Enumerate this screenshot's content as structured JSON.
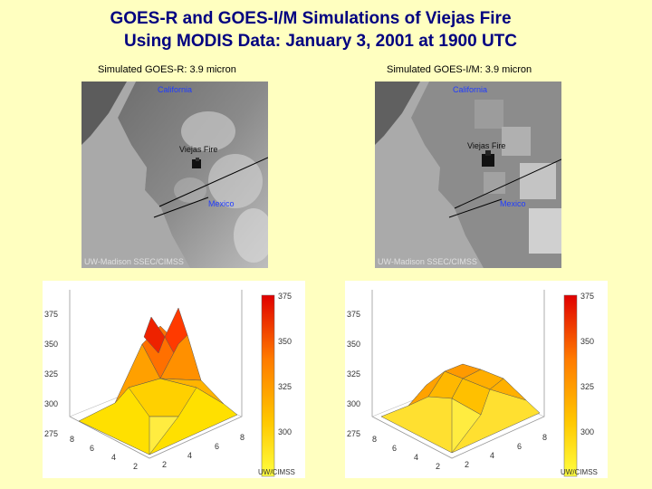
{
  "title_line1": "GOES-R and GOES-I/M Simulations of Viejas Fire",
  "title_line2": "Using MODIS Data:  January 3, 2001 at 1900 UTC",
  "left": {
    "caption": "Simulated GOES-R:  3.9 micron",
    "california": "California",
    "fire": "Viejas Fire",
    "mexico": "Mexico",
    "credit": "UW-Madison SSEC/CIMSS",
    "plot": {
      "y_ticks": [
        "375",
        "350",
        "325",
        "300",
        "275"
      ],
      "x_ticks_left": [
        "8",
        "6",
        "4",
        "2"
      ],
      "x_ticks_right": [
        "2",
        "4",
        "6",
        "8"
      ],
      "colorbar_ticks": [
        "375",
        "350",
        "325",
        "300"
      ],
      "credit": "UW/CIMSS"
    }
  },
  "right": {
    "caption": "Simulated GOES-I/M:  3.9 micron",
    "california": "California",
    "fire": "Viejas Fire",
    "mexico": "Mexico",
    "credit": "UW-Madison SSEC/CIMSS",
    "plot": {
      "y_ticks": [
        "375",
        "350",
        "325",
        "300",
        "275"
      ],
      "x_ticks_left": [
        "8",
        "6",
        "4",
        "2"
      ],
      "x_ticks_right": [
        "2",
        "4",
        "6",
        "8"
      ],
      "colorbar_ticks": [
        "375",
        "350",
        "325",
        "300"
      ],
      "credit": "UW/CIMSS"
    }
  },
  "colors": {
    "title": "#000080",
    "background": "#ffffc0",
    "label_blue": "#1f3bff"
  }
}
